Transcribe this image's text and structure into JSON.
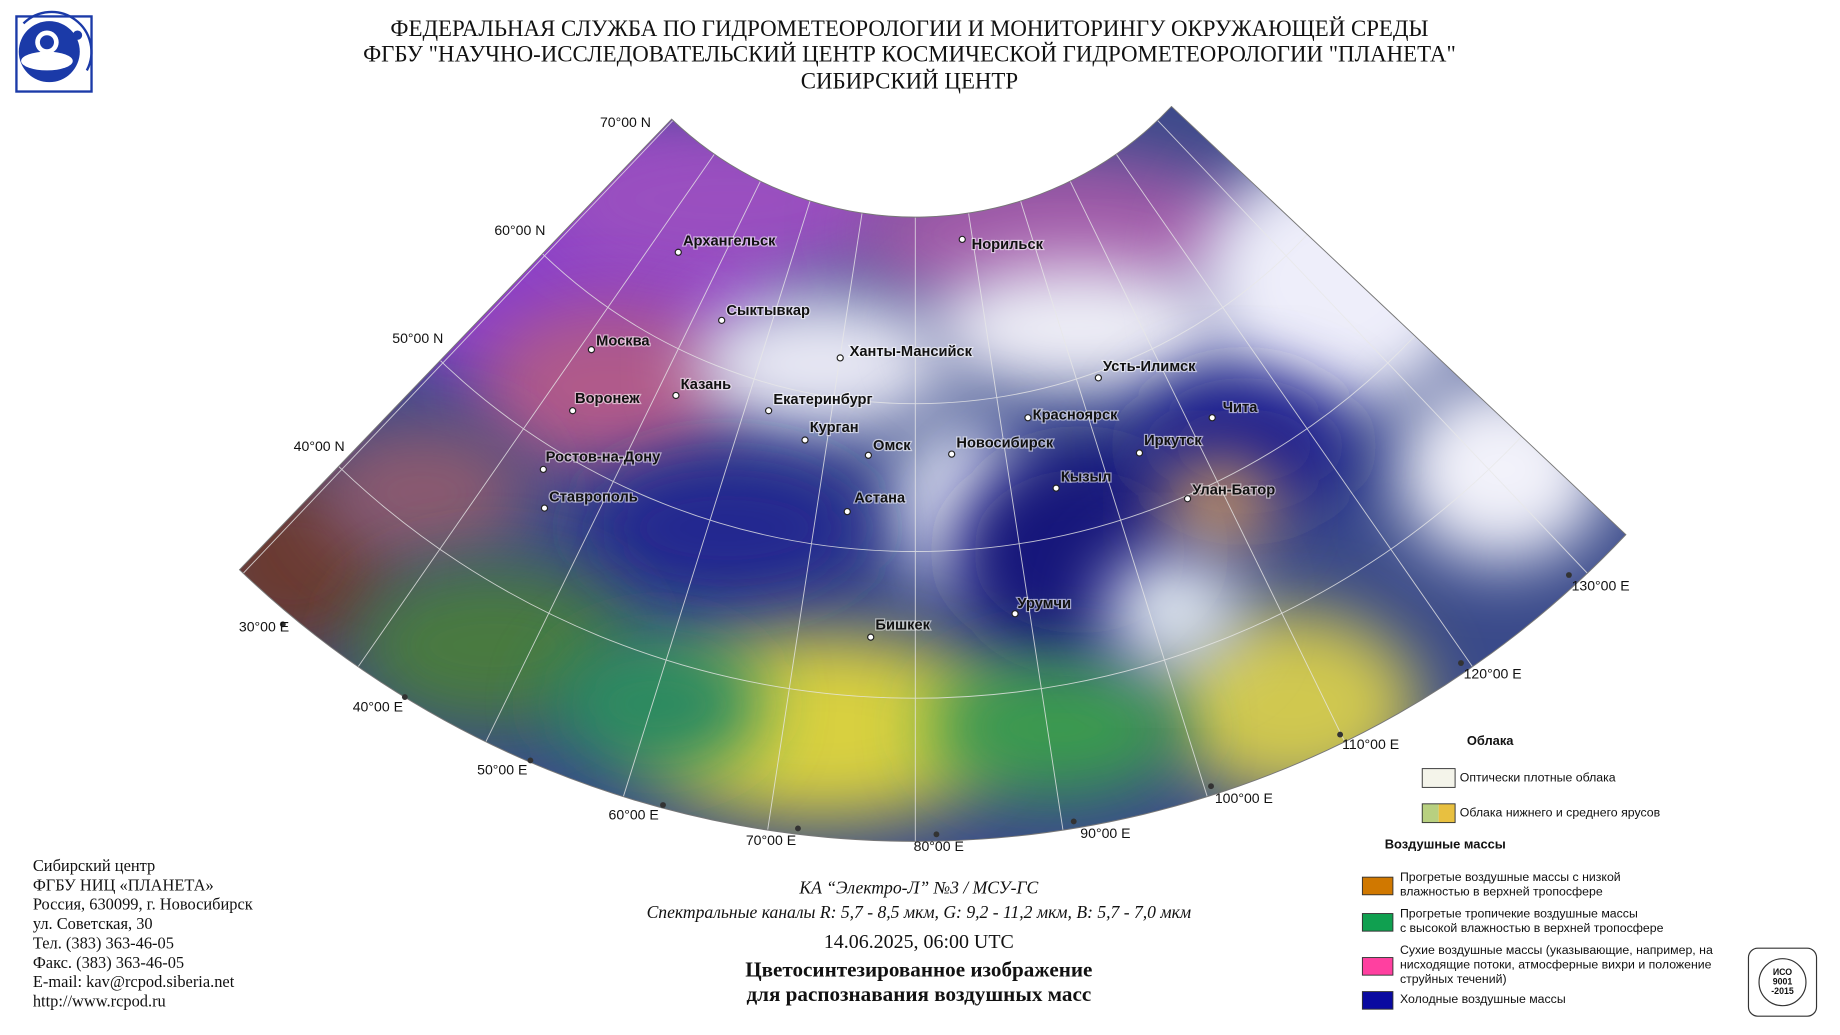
{
  "header": {
    "lines": [
      "ФЕДЕРАЛЬНАЯ СЛУЖБА ПО ГИДРОМЕТЕОРОЛОГИИ И МОНИТОРИНГУ ОКРУЖАЮЩЕЙ СРЕДЫ",
      "ФГБУ \"НАУЧНО-ИССЛЕДОВАТЕЛЬСКИЙ ЦЕНТР КОСМИЧЕСКОЙ ГИДРОМЕТЕОРОЛОГИИ \"ПЛАНЕТА\"",
      "СИБИРСКИЙ ЦЕНТР"
    ]
  },
  "map": {
    "lat_labels": [
      "70°00 N",
      "60°00 N",
      "50°00 N",
      "40°00 N"
    ],
    "lon_labels": [
      "30°00 E",
      "40°00 E",
      "50°00 E",
      "60°00 E",
      "70°00 E",
      "80°00 E",
      "90°00 E",
      "100°00 E",
      "110°00 E",
      "120°00 E",
      "130°00 E"
    ],
    "cities": [
      "Архангельск",
      "Норильск",
      "Сыктывкар",
      "Москва",
      "Ханты-Мансийск",
      "Усть-Илимск",
      "Казань",
      "Воронеж",
      "Екатеринбург",
      "Чита",
      "Красноярск",
      "Курган",
      "Омск",
      "Новосибирск",
      "Иркутск",
      "Ростов-на-Дону",
      "Кызыл",
      "Улан-Батор",
      "Ставрополь",
      "Астана",
      "Урумчи",
      "Бишкек"
    ]
  },
  "legend": {
    "clouds": {
      "title": "Облака",
      "items": [
        "Оптически плотные облака",
        "Облака нижнего и среднего ярусов"
      ]
    },
    "air_masses": {
      "title": "Воздушные массы",
      "items": [
        {
          "lines": [
            "Прогретые воздушные массы с низкой",
            "влажностью в верхней тропосфере"
          ]
        },
        {
          "lines": [
            "Прогретые тропичекие воздушные массы",
            "с высокой влажностью в верхней тропосфере"
          ]
        },
        {
          "lines": [
            "Сухие воздушные массы (указывающие, например, на",
            "нисходящие потоки, атмосферные вихри и положение",
            "струйных течений)"
          ]
        },
        {
          "lines": [
            "Холодные воздушные массы"
          ]
        }
      ]
    }
  },
  "contact": {
    "lines": [
      "Сибирский центр",
      "ФГБУ НИЦ «ПЛАНЕТА»",
      "Россия, 630099, г. Новосибирск",
      "ул. Советская, 30",
      "Тел. (383) 363-46-05",
      "Факс. (383) 363-46-05",
      "E-mail: kav@rcpod.siberia.net",
      "http://www.rcpod.ru"
    ]
  },
  "caption": {
    "lines": [
      "КА “Электро-Л” №3 / МСУ-ГС",
      "Спектральные каналы R: 5,7 - 8,5 мкм, G: 9,2 - 11,2 мкм, B: 5,7 - 7,0 мкм",
      "14.06.2025, 06:00 UTC",
      "Цветосинтезированное изображение",
      "для распознавания воздушных масс"
    ]
  },
  "certificate": {
    "lines": [
      "ИСО",
      "9001",
      "-2015"
    ]
  }
}
